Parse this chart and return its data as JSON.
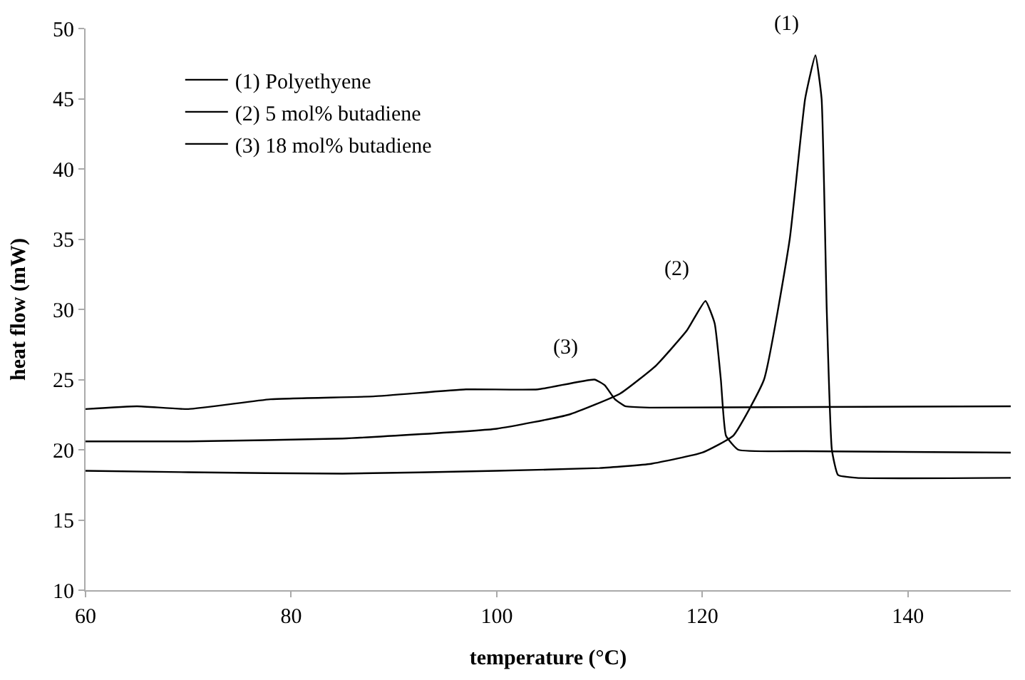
{
  "chart_data": {
    "type": "line",
    "xlabel": "temperature (°C)",
    "ylabel": "heat flow (mW)",
    "xlim": [
      60,
      150
    ],
    "xticks": [
      60,
      80,
      100,
      120,
      140
    ],
    "ylim": [
      10,
      50
    ],
    "yticks": [
      10,
      15,
      20,
      25,
      30,
      35,
      40,
      45,
      50
    ],
    "legend": "top left",
    "marker": "none",
    "line_style": "solid",
    "series": [
      {
        "name": "(1) Polyethyene",
        "color": "#000000",
        "x": [
          60,
          70,
          85,
          100,
          110,
          115,
          120,
          123,
          126,
          128.5,
          130,
          131,
          131.6,
          132.1,
          132.6,
          133.2,
          135,
          150
        ],
        "values": [
          18.5,
          18.4,
          18.3,
          18.5,
          18.7,
          19.0,
          19.8,
          21.0,
          25.0,
          35.0,
          45.0,
          48.1,
          45.0,
          30.0,
          20.0,
          18.2,
          18.0,
          18.0
        ]
      },
      {
        "name": "(2) 5 mol% butadiene",
        "color": "#000000",
        "x": [
          60,
          70,
          85,
          100,
          107,
          112,
          115.5,
          118.5,
          120.3,
          121.2,
          121.8,
          122.3,
          123.5,
          130,
          150
        ],
        "values": [
          20.6,
          20.6,
          20.8,
          21.5,
          22.5,
          24.0,
          26.0,
          28.5,
          30.6,
          29.0,
          25.0,
          21.0,
          20.0,
          19.9,
          19.8
        ]
      },
      {
        "name": "(3) 18 mol% butadiene",
        "color": "#000000",
        "x": [
          60,
          65,
          70,
          78,
          88,
          97,
          104,
          109.5,
          110.5,
          111.5,
          112.5,
          115,
          150
        ],
        "values": [
          22.9,
          23.1,
          22.9,
          23.6,
          23.8,
          24.3,
          24.3,
          25.0,
          24.6,
          23.6,
          23.1,
          23.0,
          23.1
        ]
      }
    ],
    "annotations": [
      {
        "text": "(1)",
        "x": 131,
        "y": 48.1
      },
      {
        "text": "(2)",
        "x": 120.3,
        "y": 30.6
      },
      {
        "text": "(3)",
        "x": 109.5,
        "y": 25.0
      }
    ]
  }
}
